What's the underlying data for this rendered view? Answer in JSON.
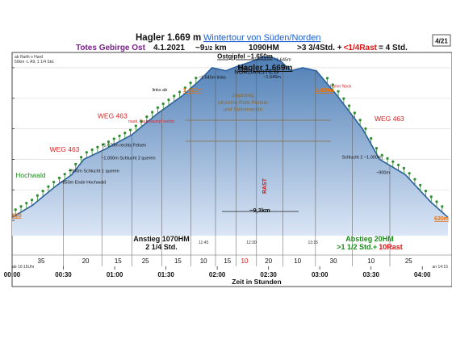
{
  "header": {
    "title": "Hagler 1.669 m",
    "link": "Wintertour von Süden/Norden",
    "region": "Totes Gebirge Ost",
    "date": "4.1.2021",
    "distance": "~9",
    "distance_frac": "1/2",
    "distance_unit": "km",
    "ascent": "1090HM",
    "time_main": ">3 3/4Std. +",
    "time_rest": "<1/4Rast",
    "time_total": "= 4 Std.",
    "page": "4/21",
    "start_note_1": "ab Raith o Hard",
    "start_note_2": "50km -L A9, 1 1/4 Std."
  },
  "colors": {
    "area_top": "#4f7fb6",
    "area_bottom": "#dbe6f6",
    "line": "#2c5f9e",
    "ascent_text": "#1f3a8a",
    "descent_text": "#1a8a1a",
    "rest_text": "#dd1111",
    "orange": "#e8700a",
    "trail_red": "#dd2222",
    "region_purple": "#7a1f8a",
    "tree": "#2e8b2e"
  },
  "summary": {
    "ascent_label": "Anstieg 1070HM",
    "ascent_time": "2 1/4 Std.",
    "descent_label": "Abstieg  20HM",
    "descent_time": ">1 1/2 Std.+",
    "descent_rest": "10Rast",
    "distance_mid": "~9,3km",
    "rast": "RAST"
  },
  "chart_data": {
    "type": "area",
    "title": "Hagler 1.669m",
    "xlabel": "Zeit in Stunden",
    "ylabel": "",
    "x_unit": "minutes",
    "xlim": [
      0,
      255
    ],
    "ylim": [
      500,
      1700
    ],
    "x_ticks": [
      "00:00",
      "00:30",
      "01:00",
      "01:30",
      "02:00",
      "02:30",
      "03:00",
      "03:30",
      "04:00"
    ],
    "x_tick_minutes": [
      0,
      30,
      60,
      90,
      120,
      150,
      180,
      210,
      240
    ],
    "y_tick_values": [
      600,
      800,
      1000,
      1200,
      1400,
      1600
    ],
    "profile": [
      {
        "t": 0,
        "elev": 620
      },
      {
        "t": 12,
        "elev": 700
      },
      {
        "t": 25,
        "elev": 820
      },
      {
        "t": 35,
        "elev": 900
      },
      {
        "t": 42,
        "elev": 1000
      },
      {
        "t": 55,
        "elev": 1070
      },
      {
        "t": 70,
        "elev": 1160
      },
      {
        "t": 85,
        "elev": 1300
      },
      {
        "t": 100,
        "elev": 1420
      },
      {
        "t": 110,
        "elev": 1520
      },
      {
        "t": 117,
        "elev": 1600
      },
      {
        "t": 125,
        "elev": 1580
      },
      {
        "t": 132,
        "elev": 1610
      },
      {
        "t": 140,
        "elev": 1640
      },
      {
        "t": 146,
        "elev": 1669
      },
      {
        "t": 152,
        "elev": 1669
      },
      {
        "t": 157,
        "elev": 1645
      },
      {
        "t": 163,
        "elev": 1580
      },
      {
        "t": 170,
        "elev": 1600
      },
      {
        "t": 178,
        "elev": 1580
      },
      {
        "t": 190,
        "elev": 1420
      },
      {
        "t": 205,
        "elev": 1200
      },
      {
        "t": 215,
        "elev": 1000
      },
      {
        "t": 230,
        "elev": 900
      },
      {
        "t": 245,
        "elev": 720
      },
      {
        "t": 255,
        "elev": 620
      }
    ],
    "segment_minutes": [
      {
        "t": 17,
        "label": "35"
      },
      {
        "t": 43,
        "label": "20"
      },
      {
        "t": 62,
        "label": "15"
      },
      {
        "t": 78,
        "label": "25"
      },
      {
        "t": 97,
        "label": "15"
      },
      {
        "t": 112,
        "label": "10"
      },
      {
        "t": 126,
        "label": "15"
      },
      {
        "t": 136,
        "label": "10",
        "rest": true
      },
      {
        "t": 150,
        "label": "20"
      },
      {
        "t": 167,
        "label": "10"
      },
      {
        "t": 188,
        "label": "30"
      },
      {
        "t": 210,
        "label": "10"
      },
      {
        "t": 232,
        "label": "25"
      }
    ],
    "time_marks": [
      {
        "t": 0,
        "label": "ab 10:15Uhr"
      },
      {
        "t": 112,
        "label": "11:45"
      },
      {
        "t": 140,
        "label": "12:30"
      },
      {
        "t": 176,
        "label": "13:15"
      },
      {
        "t": 255,
        "label": "an 14:15"
      }
    ],
    "annotations": [
      {
        "t": 2,
        "elev": 880,
        "text": "Hochwald",
        "style": "green"
      },
      {
        "t": 50,
        "elev": 1270,
        "text": "WEG 463",
        "style": "red"
      },
      {
        "t": 22,
        "elev": 1050,
        "text": "WEG 463",
        "style": "red"
      },
      {
        "t": 212,
        "elev": 1250,
        "text": "WEG 463",
        "style": "red"
      },
      {
        "t": 120,
        "elev": 1660,
        "text": "Ostgipfel ~1.650m",
        "style": "bold"
      },
      {
        "t": 130,
        "elev": 1560,
        "text": "NORDANSTIEG",
        "style": "plain"
      },
      {
        "t": 132,
        "elev": 1590,
        "text": "Grat",
        "style": "small"
      },
      {
        "t": 153,
        "elev": 1645,
        "text": "~1.645m",
        "style": "small"
      },
      {
        "t": 109,
        "elev": 1528,
        "text": "~1.645m links",
        "style": "small"
      },
      {
        "t": 147,
        "elev": 1530,
        "text": "~1.545m",
        "style": "small"
      },
      {
        "t": 100,
        "elev": 1440,
        "text": "1.420m",
        "style": "orange"
      },
      {
        "t": 177,
        "elev": 1440,
        "text": "1.420m",
        "style": "orange"
      },
      {
        "t": 0,
        "elev": 620,
        "text": "620",
        "style": "orange"
      },
      {
        "t": 247,
        "elev": 600,
        "text": "620m",
        "style": "orange"
      },
      {
        "t": 82,
        "elev": 1445,
        "text": "links ab",
        "style": "small"
      },
      {
        "t": 186,
        "elev": 1470,
        "text": "Hoher Nock",
        "style": "smallred"
      },
      {
        "t": 135,
        "elev": 1410,
        "text": "Jagdsteig",
        "style": "brown"
      },
      {
        "t": 135,
        "elev": 1362,
        "text": "einzelne Rote Punkte",
        "style": "brown"
      },
      {
        "t": 135,
        "elev": 1318,
        "text": "und Steinmandln",
        "style": "brown"
      },
      {
        "t": 68,
        "elev": 1240,
        "text": "mark. Baumstumpf rechts",
        "style": "smallred"
      },
      {
        "t": 52,
        "elev": 1085,
        "text": "~1.070m rechts Felsen",
        "style": "small"
      },
      {
        "t": 52,
        "elev": 1000,
        "text": "~1.000m Schlucht 2 queren",
        "style": "small"
      },
      {
        "t": 33,
        "elev": 915,
        "text": "~900m Schlucht 1 queren",
        "style": "small"
      },
      {
        "t": 28,
        "elev": 840,
        "text": "~850m Ende Hochwald",
        "style": "small"
      },
      {
        "t": 193,
        "elev": 1005,
        "text": "Schlucht 2 ~1.000m",
        "style": "small"
      },
      {
        "t": 213,
        "elev": 905,
        "text": "~900m",
        "style": "small"
      }
    ]
  }
}
